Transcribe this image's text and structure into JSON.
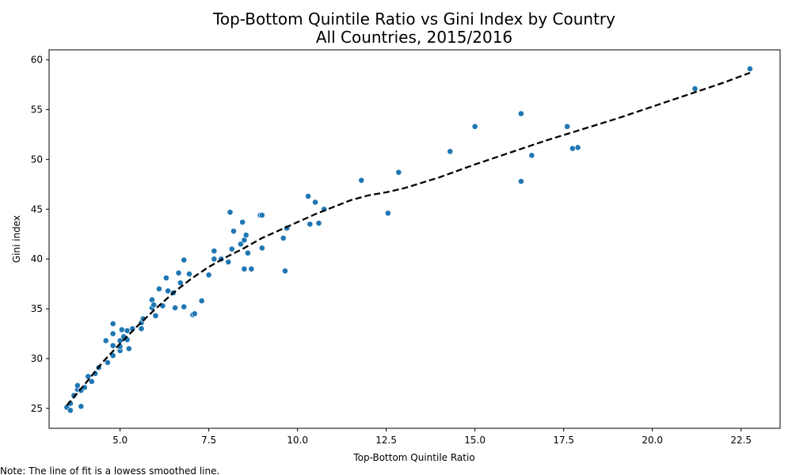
{
  "chart_data": {
    "type": "scatter",
    "title": "Top-Bottom Quintile Ratio vs Gini Index by Country",
    "subtitle": "All Countries, 2015/2016",
    "xlabel": "Top-Bottom Quintile Ratio",
    "ylabel": "Gini index",
    "xlim": [
      3.0,
      23.6
    ],
    "ylim": [
      23.0,
      61.0
    ],
    "xticks": [
      "5.0",
      "7.5",
      "10.0",
      "12.5",
      "15.0",
      "17.5",
      "20.0",
      "22.5"
    ],
    "xtick_values": [
      5.0,
      7.5,
      10.0,
      12.5,
      15.0,
      17.5,
      20.0,
      22.5
    ],
    "yticks": [
      "25",
      "30",
      "35",
      "40",
      "45",
      "50",
      "55",
      "60"
    ],
    "ytick_values": [
      25,
      30,
      35,
      40,
      45,
      50,
      55,
      60
    ],
    "grid": false,
    "note": "Note: The line of fit is a lowess smoothed line.",
    "colors": {
      "points": "#1f77b4",
      "fit_line": "#000000"
    },
    "points": [
      {
        "x": 3.5,
        "y": 25.1
      },
      {
        "x": 3.6,
        "y": 24.8
      },
      {
        "x": 3.6,
        "y": 25.5
      },
      {
        "x": 3.7,
        "y": 26.3
      },
      {
        "x": 3.8,
        "y": 26.9
      },
      {
        "x": 3.8,
        "y": 27.3
      },
      {
        "x": 3.9,
        "y": 26.8
      },
      {
        "x": 3.9,
        "y": 25.2
      },
      {
        "x": 4.0,
        "y": 27.1
      },
      {
        "x": 4.1,
        "y": 28.2
      },
      {
        "x": 4.2,
        "y": 27.7
      },
      {
        "x": 4.3,
        "y": 28.5
      },
      {
        "x": 4.4,
        "y": 29.1
      },
      {
        "x": 4.6,
        "y": 31.8
      },
      {
        "x": 4.65,
        "y": 29.6
      },
      {
        "x": 4.8,
        "y": 30.3
      },
      {
        "x": 4.8,
        "y": 31.3
      },
      {
        "x": 4.8,
        "y": 32.5
      },
      {
        "x": 4.8,
        "y": 33.5
      },
      {
        "x": 5.0,
        "y": 30.8
      },
      {
        "x": 5.0,
        "y": 31.2
      },
      {
        "x": 5.0,
        "y": 31.8
      },
      {
        "x": 5.05,
        "y": 32.9
      },
      {
        "x": 5.1,
        "y": 32.2
      },
      {
        "x": 5.2,
        "y": 31.9
      },
      {
        "x": 5.2,
        "y": 32.8
      },
      {
        "x": 5.25,
        "y": 31.0
      },
      {
        "x": 5.35,
        "y": 33.0
      },
      {
        "x": 5.6,
        "y": 33.0
      },
      {
        "x": 5.6,
        "y": 33.6
      },
      {
        "x": 5.65,
        "y": 34.0
      },
      {
        "x": 5.9,
        "y": 35.1
      },
      {
        "x": 5.9,
        "y": 35.9
      },
      {
        "x": 5.95,
        "y": 35.4
      },
      {
        "x": 6.0,
        "y": 34.3
      },
      {
        "x": 6.1,
        "y": 37.0
      },
      {
        "x": 6.2,
        "y": 35.3
      },
      {
        "x": 6.3,
        "y": 38.1
      },
      {
        "x": 6.35,
        "y": 36.8
      },
      {
        "x": 6.5,
        "y": 36.6
      },
      {
        "x": 6.55,
        "y": 35.1
      },
      {
        "x": 6.65,
        "y": 38.6
      },
      {
        "x": 6.7,
        "y": 37.6
      },
      {
        "x": 6.8,
        "y": 35.2
      },
      {
        "x": 6.8,
        "y": 39.9
      },
      {
        "x": 6.95,
        "y": 38.5
      },
      {
        "x": 7.05,
        "y": 34.4
      },
      {
        "x": 7.1,
        "y": 34.5
      },
      {
        "x": 7.3,
        "y": 35.8
      },
      {
        "x": 7.5,
        "y": 38.4
      },
      {
        "x": 7.65,
        "y": 40.8
      },
      {
        "x": 7.65,
        "y": 40.0
      },
      {
        "x": 7.85,
        "y": 40.0
      },
      {
        "x": 8.05,
        "y": 39.7
      },
      {
        "x": 8.1,
        "y": 44.7
      },
      {
        "x": 8.15,
        "y": 41.0
      },
      {
        "x": 8.2,
        "y": 42.8
      },
      {
        "x": 8.4,
        "y": 41.5
      },
      {
        "x": 8.45,
        "y": 43.7
      },
      {
        "x": 8.5,
        "y": 41.9
      },
      {
        "x": 8.5,
        "y": 39.0
      },
      {
        "x": 8.55,
        "y": 42.4
      },
      {
        "x": 8.6,
        "y": 40.6
      },
      {
        "x": 8.7,
        "y": 39.0
      },
      {
        "x": 8.95,
        "y": 44.4
      },
      {
        "x": 9.0,
        "y": 44.4
      },
      {
        "x": 9.0,
        "y": 41.1
      },
      {
        "x": 9.6,
        "y": 42.1
      },
      {
        "x": 9.65,
        "y": 38.8
      },
      {
        "x": 9.7,
        "y": 43.1
      },
      {
        "x": 10.3,
        "y": 46.3
      },
      {
        "x": 10.35,
        "y": 43.5
      },
      {
        "x": 10.5,
        "y": 45.7
      },
      {
        "x": 10.6,
        "y": 43.6
      },
      {
        "x": 10.75,
        "y": 45.0
      },
      {
        "x": 11.8,
        "y": 47.9
      },
      {
        "x": 12.55,
        "y": 44.6
      },
      {
        "x": 12.85,
        "y": 48.7
      },
      {
        "x": 14.3,
        "y": 50.8
      },
      {
        "x": 15.0,
        "y": 53.3
      },
      {
        "x": 16.3,
        "y": 54.6
      },
      {
        "x": 16.3,
        "y": 47.8
      },
      {
        "x": 16.6,
        "y": 50.4
      },
      {
        "x": 17.6,
        "y": 53.3
      },
      {
        "x": 17.75,
        "y": 51.1
      },
      {
        "x": 17.9,
        "y": 51.2
      },
      {
        "x": 21.2,
        "y": 57.1
      },
      {
        "x": 22.75,
        "y": 59.1
      }
    ],
    "fit_line": [
      {
        "x": 3.5,
        "y": 25.3
      },
      {
        "x": 4.0,
        "y": 27.4
      },
      {
        "x": 4.5,
        "y": 29.6
      },
      {
        "x": 5.0,
        "y": 31.5
      },
      {
        "x": 5.5,
        "y": 33.3
      },
      {
        "x": 6.0,
        "y": 35.0
      },
      {
        "x": 6.5,
        "y": 36.6
      },
      {
        "x": 7.0,
        "y": 38.0
      },
      {
        "x": 7.5,
        "y": 39.2
      },
      {
        "x": 8.0,
        "y": 40.2
      },
      {
        "x": 8.5,
        "y": 41.1
      },
      {
        "x": 9.0,
        "y": 42.1
      },
      {
        "x": 9.5,
        "y": 42.9
      },
      {
        "x": 10.0,
        "y": 43.7
      },
      {
        "x": 10.5,
        "y": 44.5
      },
      {
        "x": 11.0,
        "y": 45.2
      },
      {
        "x": 11.5,
        "y": 45.9
      },
      {
        "x": 12.0,
        "y": 46.4
      },
      {
        "x": 12.5,
        "y": 46.7
      },
      {
        "x": 13.0,
        "y": 47.1
      },
      {
        "x": 14.0,
        "y": 48.2
      },
      {
        "x": 15.0,
        "y": 49.5
      },
      {
        "x": 16.0,
        "y": 50.7
      },
      {
        "x": 17.0,
        "y": 51.9
      },
      {
        "x": 18.0,
        "y": 53.0
      },
      {
        "x": 19.0,
        "y": 54.1
      },
      {
        "x": 20.0,
        "y": 55.3
      },
      {
        "x": 21.0,
        "y": 56.5
      },
      {
        "x": 22.0,
        "y": 57.7
      },
      {
        "x": 22.75,
        "y": 58.7
      }
    ]
  }
}
